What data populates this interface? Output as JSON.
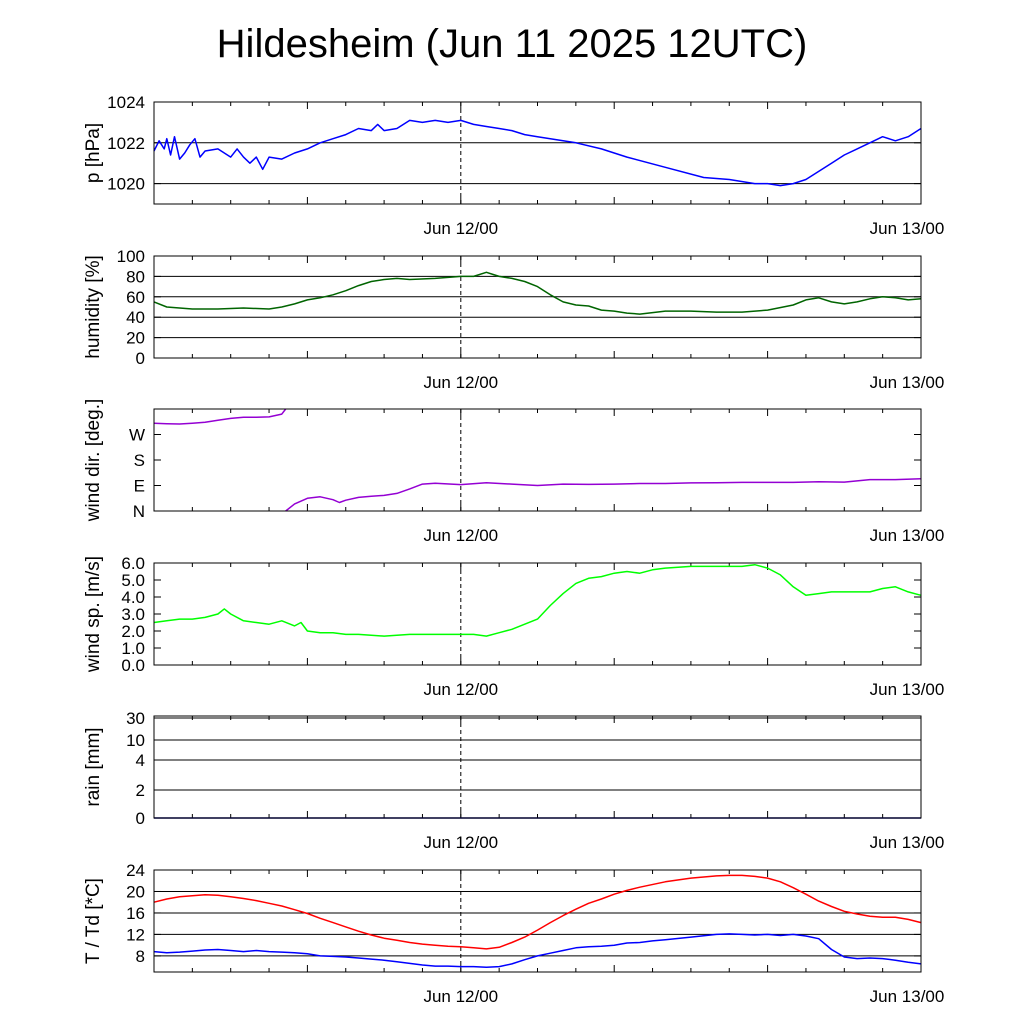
{
  "title": "Hildesheim (Jun 11 2025 12UTC)",
  "x_tick_labels": [
    "Jun 12/00",
    "Jun 13/00"
  ],
  "chart_data": [
    {
      "type": "line",
      "id": "pressure",
      "ylabel": "p [hPa]",
      "ylim": [
        1019,
        1024
      ],
      "yticks": [
        1020,
        1022,
        1024
      ],
      "ytick_labels": [
        "1020",
        "1022",
        "1024"
      ],
      "gridlines": [
        1020,
        1022,
        1024
      ],
      "grid": true,
      "x_unit": "hours since Jun 11 12UTC",
      "xlim": [
        0,
        60
      ],
      "series": [
        {
          "color": "#0000ff",
          "x": [
            0,
            0.4,
            0.8,
            1.0,
            1.3,
            1.6,
            2.0,
            2.4,
            2.8,
            3.2,
            3.6,
            4.0,
            5,
            6,
            6.5,
            7,
            7.5,
            8,
            8.5,
            9,
            10,
            11,
            12,
            13,
            14,
            15,
            16,
            17,
            17.5,
            18,
            19,
            20,
            21,
            22,
            23,
            24,
            25,
            26,
            27,
            28,
            29,
            30,
            31,
            33,
            35,
            37,
            40,
            43,
            45,
            47,
            48,
            49,
            50,
            51,
            52,
            53,
            54,
            55,
            56,
            57,
            58,
            59,
            60
          ],
          "y": [
            1021.6,
            1022.1,
            1021.7,
            1022.2,
            1021.4,
            1022.3,
            1021.2,
            1021.5,
            1021.9,
            1022.2,
            1021.3,
            1021.6,
            1021.7,
            1021.3,
            1021.7,
            1021.3,
            1021.0,
            1021.3,
            1020.7,
            1021.3,
            1021.2,
            1021.5,
            1021.7,
            1022.0,
            1022.2,
            1022.4,
            1022.7,
            1022.6,
            1022.9,
            1022.6,
            1022.7,
            1023.1,
            1023.0,
            1023.1,
            1023.0,
            1023.1,
            1022.9,
            1022.8,
            1022.7,
            1022.6,
            1022.4,
            1022.3,
            1022.2,
            1022.0,
            1021.7,
            1021.3,
            1020.8,
            1020.3,
            1020.2,
            1020.0,
            1020.0,
            1019.9,
            1020.0,
            1020.2,
            1020.6,
            1021.0,
            1021.4,
            1021.7,
            1022.0,
            1022.3,
            1022.1,
            1022.3,
            1022.7
          ]
        }
      ]
    },
    {
      "type": "line",
      "id": "humidity",
      "ylabel": "humidity [%]",
      "ylim": [
        0,
        100
      ],
      "yticks": [
        0,
        20,
        40,
        60,
        80,
        100
      ],
      "ytick_labels": [
        "0",
        "20",
        "40",
        "60",
        "80",
        "100"
      ],
      "gridlines": [
        20,
        40,
        60,
        80
      ],
      "grid": true,
      "x_unit": "hours since Jun 11 12UTC",
      "xlim": [
        0,
        60
      ],
      "series": [
        {
          "color": "#006400",
          "x": [
            0,
            1,
            3,
            5,
            7,
            9,
            10,
            11,
            12,
            13,
            14,
            15,
            16,
            17,
            18,
            19,
            20,
            22,
            24,
            25,
            26,
            26.5,
            27,
            28,
            29,
            30,
            31,
            32,
            33,
            34,
            35,
            36,
            37,
            38,
            40,
            42,
            44,
            46,
            48,
            50,
            51,
            52,
            53,
            54,
            55,
            56,
            57,
            58,
            59,
            60
          ],
          "y": [
            55,
            50,
            48,
            48,
            49,
            48,
            50,
            53,
            57,
            59,
            62,
            66,
            71,
            75,
            77,
            78,
            77,
            78,
            80,
            80,
            84,
            82,
            80,
            78,
            75,
            70,
            62,
            55,
            52,
            51,
            47,
            46,
            44,
            43,
            46,
            46,
            45,
            45,
            47,
            52,
            57,
            59,
            55,
            53,
            55,
            58,
            60,
            59,
            57,
            58
          ]
        }
      ]
    },
    {
      "type": "line",
      "id": "wind_direction",
      "ylabel": "wind dir. [deg.]",
      "ylim": [
        0,
        360
      ],
      "yticks": [
        0,
        90,
        180,
        270
      ],
      "ytick_labels": [
        "N",
        "E",
        "S",
        "W"
      ],
      "gridlines": [],
      "grid": false,
      "x_unit": "hours since Jun 11 12UTC",
      "xlim": [
        0,
        60
      ],
      "series": [
        {
          "color": "#9400d3",
          "x": [
            0,
            1,
            2,
            3,
            4,
            5,
            6,
            7,
            8,
            9,
            10,
            10.3
          ],
          "y": [
            310,
            308,
            307,
            310,
            313,
            320,
            327,
            331,
            331,
            332,
            342,
            360
          ]
        },
        {
          "color": "#9400d3",
          "x": [
            10.3,
            11,
            12,
            13,
            14,
            14.5,
            15,
            16,
            17,
            18,
            19,
            20,
            21,
            22,
            24,
            26,
            28,
            30,
            32,
            34,
            36,
            38,
            40,
            42,
            44,
            46,
            48,
            50,
            52,
            54,
            56,
            58,
            60
          ],
          "y": [
            0,
            25,
            45,
            50,
            40,
            30,
            38,
            48,
            52,
            55,
            62,
            78,
            95,
            98,
            93,
            100,
            95,
            90,
            95,
            94,
            95,
            97,
            97,
            99,
            100,
            101,
            101,
            101,
            103,
            102,
            111,
            111,
            114
          ]
        }
      ]
    },
    {
      "type": "line",
      "id": "wind_speed",
      "ylabel": "wind sp. [m/s]",
      "ylim": [
        0,
        6
      ],
      "yticks": [
        0,
        1,
        2,
        3,
        4,
        5,
        6
      ],
      "ytick_labels": [
        "0.0",
        "1.0",
        "2.0",
        "3.0",
        "4.0",
        "5.0",
        "6.0"
      ],
      "gridlines": [],
      "grid": false,
      "x_unit": "hours since Jun 11 12UTC",
      "xlim": [
        0,
        60
      ],
      "series": [
        {
          "color": "#00ff00",
          "x": [
            0,
            1,
            2,
            3,
            4,
            5,
            5.5,
            6,
            7,
            8,
            9,
            10,
            11,
            11.5,
            12,
            13,
            14,
            15,
            16,
            18,
            20,
            22,
            24,
            25,
            26,
            27,
            28,
            29,
            30,
            31,
            32,
            33,
            34,
            35,
            36,
            37,
            38,
            39,
            40,
            42,
            44,
            46,
            47,
            48,
            49,
            50,
            51,
            52,
            53,
            54,
            55,
            56,
            57,
            58,
            59,
            60
          ],
          "y": [
            2.5,
            2.6,
            2.7,
            2.7,
            2.8,
            3.0,
            3.3,
            3.0,
            2.6,
            2.5,
            2.4,
            2.6,
            2.3,
            2.5,
            2.0,
            1.9,
            1.9,
            1.8,
            1.8,
            1.7,
            1.8,
            1.8,
            1.8,
            1.8,
            1.7,
            1.9,
            2.1,
            2.4,
            2.7,
            3.5,
            4.2,
            4.8,
            5.1,
            5.2,
            5.4,
            5.5,
            5.4,
            5.6,
            5.7,
            5.8,
            5.8,
            5.8,
            5.9,
            5.7,
            5.3,
            4.6,
            4.1,
            4.2,
            4.3,
            4.3,
            4.3,
            4.3,
            4.5,
            4.6,
            4.3,
            4.1
          ]
        }
      ]
    },
    {
      "type": "line",
      "id": "rain",
      "ylabel": "rain [mm]",
      "scale": "custom nonlinear",
      "yticks": [
        0,
        2,
        4,
        10,
        30
      ],
      "ytick_labels": [
        "0",
        "2",
        "4",
        "10",
        "30"
      ],
      "gridlines": [
        2,
        4,
        10,
        30
      ],
      "grid": true,
      "x_unit": "hours since Jun 11 12UTC",
      "xlim": [
        0,
        60
      ],
      "series": [
        {
          "color": "#00008b",
          "x": [
            0,
            60
          ],
          "y": [
            0,
            0
          ]
        }
      ]
    },
    {
      "type": "line",
      "id": "temperature",
      "ylabel": "T / Td [*C]",
      "ylim": [
        5,
        24
      ],
      "yticks": [
        8,
        12,
        16,
        20,
        24
      ],
      "ytick_labels": [
        "8",
        "12",
        "16",
        "20",
        "24"
      ],
      "gridlines": [
        8,
        12,
        16,
        20
      ],
      "grid": true,
      "x_unit": "hours since Jun 11 12UTC",
      "xlim": [
        0,
        60
      ],
      "series": [
        {
          "color": "#ff0000",
          "x": [
            0,
            1,
            2,
            3,
            4,
            5,
            6,
            7,
            8,
            9,
            10,
            11,
            12,
            13,
            14,
            15,
            16,
            17,
            18,
            19,
            20,
            21,
            22,
            23,
            24,
            25,
            26,
            27,
            28,
            29,
            30,
            31,
            32,
            33,
            34,
            35,
            36,
            37,
            38,
            40,
            42,
            44,
            45,
            46,
            47,
            48,
            49,
            50,
            51,
            52,
            53,
            54,
            55,
            56,
            57,
            58,
            59,
            60
          ],
          "y": [
            18.0,
            18.6,
            19.0,
            19.2,
            19.4,
            19.3,
            19.0,
            18.7,
            18.3,
            17.8,
            17.3,
            16.6,
            15.9,
            15.0,
            14.2,
            13.4,
            12.6,
            11.9,
            11.3,
            10.9,
            10.5,
            10.2,
            10.0,
            9.8,
            9.7,
            9.5,
            9.3,
            9.6,
            10.5,
            11.5,
            12.8,
            14.2,
            15.5,
            16.7,
            17.8,
            18.6,
            19.5,
            20.2,
            20.8,
            21.8,
            22.5,
            22.9,
            23.0,
            23.0,
            22.8,
            22.5,
            21.8,
            20.7,
            19.5,
            18.2,
            17.2,
            16.3,
            15.8,
            15.4,
            15.2,
            15.2,
            14.8,
            14.2
          ]
        },
        {
          "color": "#0000ff",
          "x": [
            0,
            1,
            2,
            3,
            4,
            5,
            6,
            7,
            8,
            9,
            10,
            11,
            12,
            13,
            14,
            15,
            16,
            17,
            18,
            19,
            20,
            21,
            22,
            23,
            24,
            25,
            26,
            27,
            28,
            29,
            30,
            31,
            32,
            33,
            34,
            35,
            36,
            37,
            38,
            39,
            40,
            42,
            44,
            45,
            46,
            47,
            48,
            49,
            50,
            51,
            52,
            53,
            54,
            55,
            56,
            57,
            58,
            59,
            60
          ],
          "y": [
            8.8,
            8.6,
            8.7,
            8.9,
            9.1,
            9.2,
            9.0,
            8.8,
            9.0,
            8.8,
            8.7,
            8.6,
            8.4,
            8.0,
            7.9,
            7.8,
            7.6,
            7.4,
            7.2,
            6.9,
            6.6,
            6.3,
            6.1,
            6.1,
            6.0,
            6.0,
            5.9,
            6.0,
            6.5,
            7.3,
            8.0,
            8.5,
            9.0,
            9.5,
            9.7,
            9.8,
            10.0,
            10.4,
            10.5,
            10.8,
            11.0,
            11.5,
            12.0,
            12.1,
            12.0,
            11.9,
            12.0,
            11.8,
            12.0,
            11.7,
            11.2,
            9.2,
            7.8,
            7.5,
            7.6,
            7.5,
            7.2,
            6.8,
            6.5
          ]
        }
      ]
    }
  ]
}
